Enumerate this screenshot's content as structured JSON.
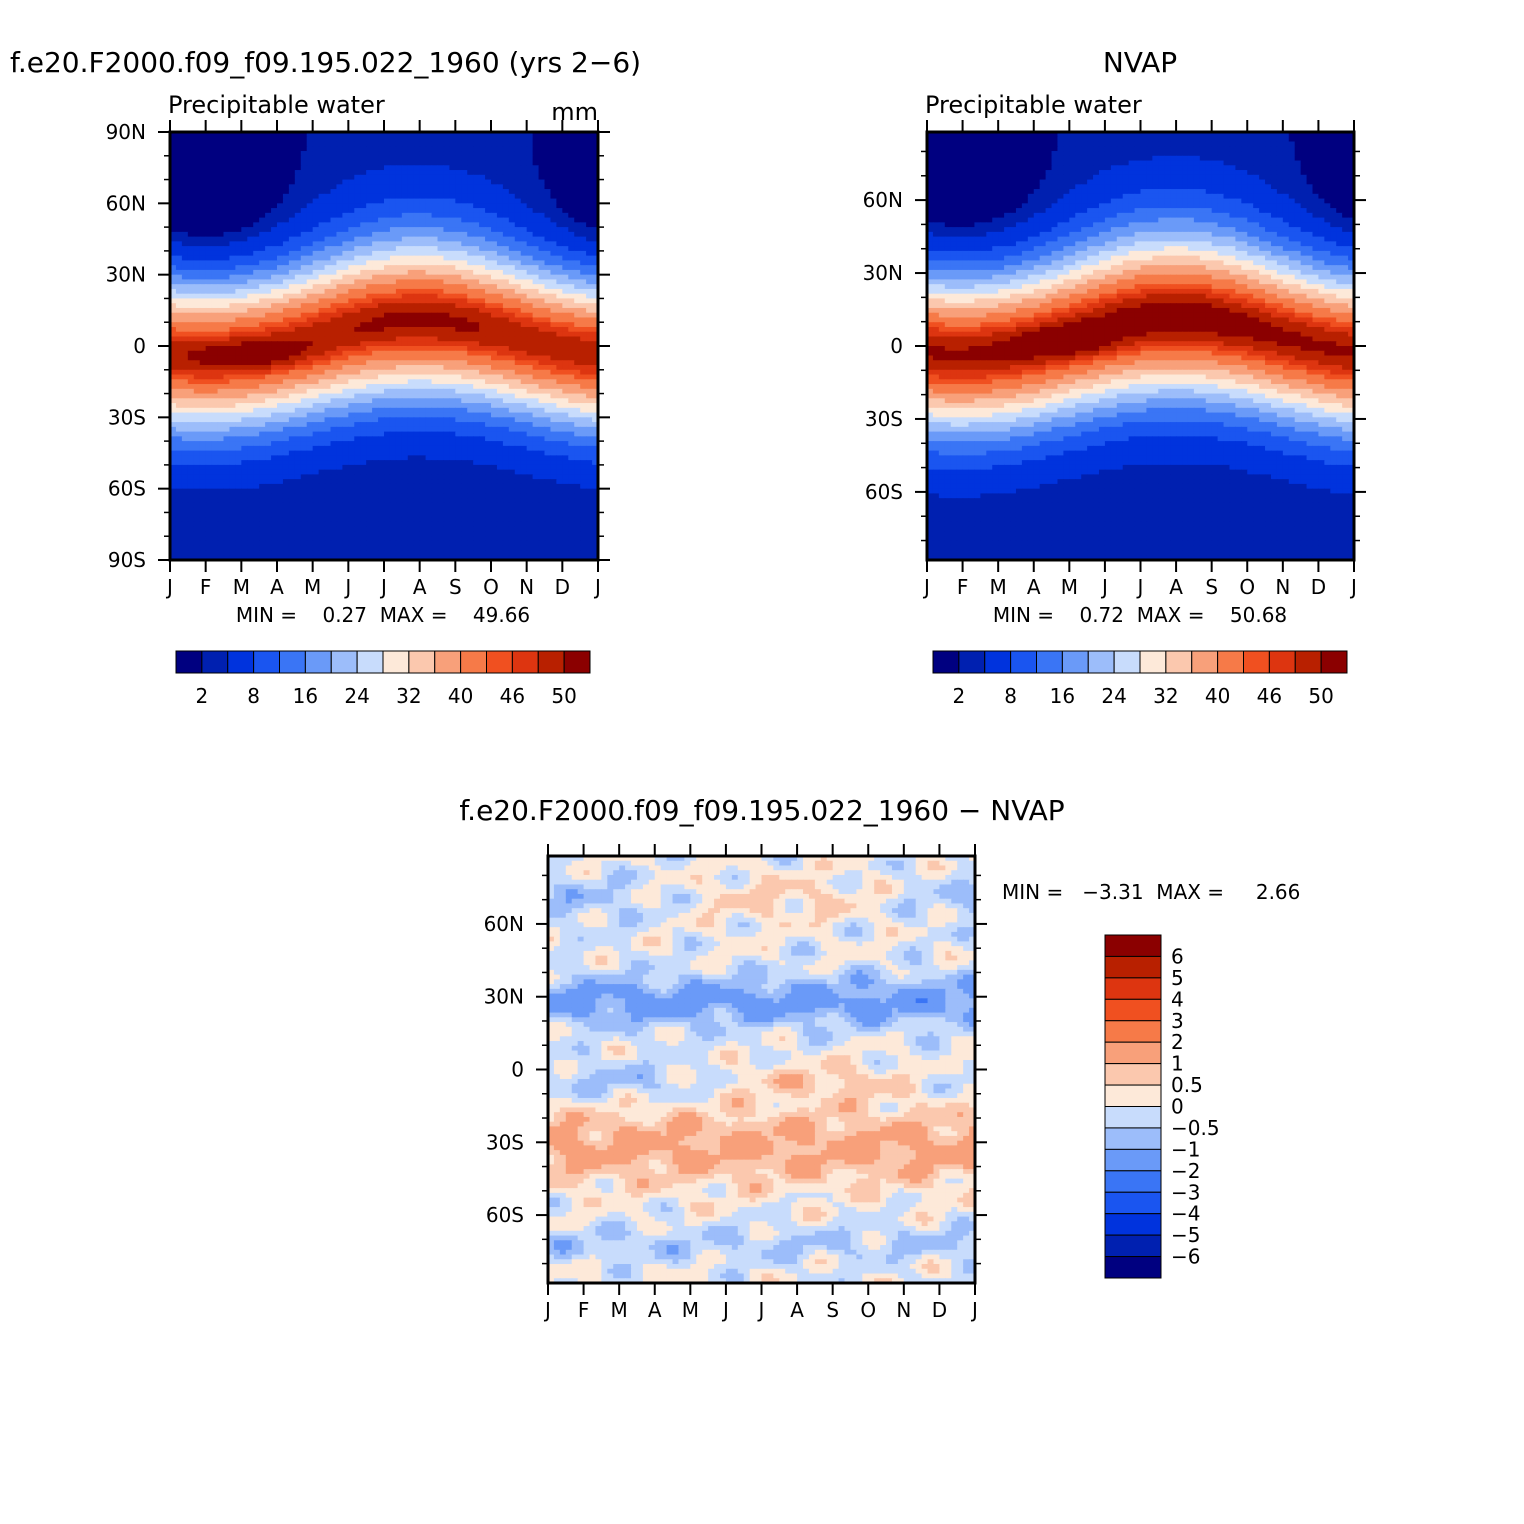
{
  "colors": {
    "palette": [
      "#000080",
      "#0020b0",
      "#0033dd",
      "#1a55f0",
      "#3a75f5",
      "#6a9af8",
      "#9cbdfa",
      "#c8dcfc",
      "#fde9d9",
      "#fbc8ae",
      "#f8a07a",
      "#f67a48",
      "#f05020",
      "#dd3510",
      "#b82000",
      "#8b0000"
    ]
  },
  "chart_data": [
    {
      "id": "model",
      "type": "heatmap",
      "title": "f.e20.F2000.f09_f09.195.022_1960 (yrs 2−6)",
      "subtitle": "Precipitable water",
      "units": "mm",
      "x_ticks": [
        "J",
        "F",
        "M",
        "A",
        "M",
        "J",
        "J",
        "A",
        "S",
        "O",
        "N",
        "D",
        "J"
      ],
      "y_ticks": [
        "90N",
        "60N",
        "30N",
        "0",
        "30S",
        "60S",
        "90S"
      ],
      "ylim": [
        -90,
        90
      ],
      "stats_text": "MIN =    0.27  MAX =    49.66",
      "min": 0.27,
      "max": 49.66,
      "levels": [
        2,
        4,
        8,
        12,
        16,
        20,
        24,
        28,
        32,
        36,
        40,
        44,
        46,
        48,
        50
      ],
      "colorbar_labels": [
        "2",
        "8",
        "16",
        "24",
        "32",
        "40",
        "46",
        "50"
      ]
    },
    {
      "id": "nvap",
      "type": "heatmap",
      "title": "NVAP",
      "subtitle": "Precipitable water",
      "x_ticks": [
        "J",
        "F",
        "M",
        "A",
        "M",
        "J",
        "J",
        "A",
        "S",
        "O",
        "N",
        "D",
        "J"
      ],
      "y_ticks": [
        "60N",
        "30N",
        "0",
        "30S",
        "60S"
      ],
      "ylim": [
        -88,
        88
      ],
      "stats_text": "MIN =    0.72  MAX =    50.68",
      "min": 0.72,
      "max": 50.68,
      "levels": [
        2,
        4,
        8,
        12,
        16,
        20,
        24,
        28,
        32,
        36,
        40,
        44,
        46,
        48,
        50
      ],
      "colorbar_labels": [
        "2",
        "8",
        "16",
        "24",
        "32",
        "40",
        "46",
        "50"
      ]
    },
    {
      "id": "diff",
      "type": "heatmap",
      "title": "f.e20.F2000.f09_f09.195.022_1960 − NVAP",
      "x_ticks": [
        "J",
        "F",
        "M",
        "A",
        "M",
        "J",
        "J",
        "A",
        "S",
        "O",
        "N",
        "D",
        "J"
      ],
      "y_ticks": [
        "60N",
        "30N",
        "0",
        "30S",
        "60S"
      ],
      "ylim": [
        -88,
        88
      ],
      "stats_text": "MIN =   −3.31  MAX =     2.66",
      "min": -3.31,
      "max": 2.66,
      "levels": [
        -6,
        -5,
        -4,
        -3,
        -2,
        -1,
        -0.5,
        0,
        0.5,
        1,
        2,
        3,
        4,
        5,
        6
      ],
      "colorbar_labels": [
        "6",
        "5",
        "4",
        "3",
        "2",
        "1",
        "0.5",
        "0",
        "−0.5",
        "−1",
        "−2",
        "−3",
        "−4",
        "−5",
        "−6"
      ]
    }
  ]
}
